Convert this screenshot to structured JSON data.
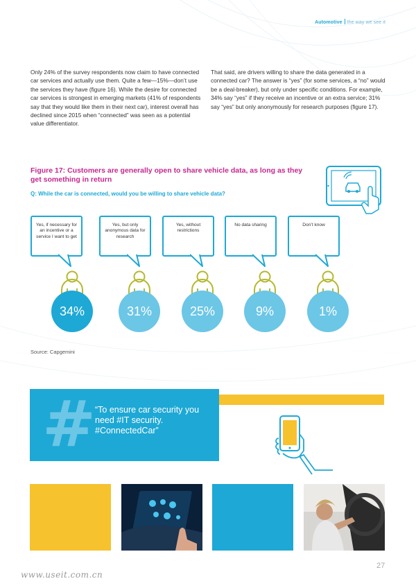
{
  "header": {
    "section": "Automotive",
    "subtitle": "the way we see it"
  },
  "body": {
    "left_paragraph": "Only 24% of the survey respondents now claim to have connected car services and actually use them. Quite a few—15%—don’t use the services they have (figure 16). While the desire for connected car services is strongest in emerging markets (41% of respondents say that they would like them in their next car), interest overall has declined since 2015 when “connected” was seen as a potential value differentiator.",
    "right_paragraph": "That said, are drivers willing to share the data generated in a connected car? The answer is “yes” (for some services, a “no” would be a deal-breaker), but only under specific conditions. For example, 34% say “yes” if they receive an incentive or an extra service; 31% say “yes” but only anonymously for research purposes (figure 17)."
  },
  "figure": {
    "title": "Figure 17: Customers are generally open to share vehicle data, as long as they get something in return",
    "question": "Q: While the car is connected, would you be willing to share vehicle data?",
    "source": "Source: Capgemini"
  },
  "chart_data": {
    "type": "table",
    "title": "Figure 17: Customers are generally open to share vehicle data, as long as they get something in return",
    "categories": [
      "Yes, if necessary for an incentive or a service I want to get",
      "Yes, but only anonymous data for research",
      "Yes, without restrictions",
      "No data sharing",
      "Don’t know"
    ],
    "values": [
      34,
      31,
      25,
      9,
      1
    ],
    "value_labels": [
      "34%",
      "31%",
      "25%",
      "9%",
      "1%"
    ],
    "colors": [
      "#1ea8d5",
      "#6cc6e6",
      "#6cc6e6",
      "#6cc6e6",
      "#6cc6e6"
    ]
  },
  "callout": {
    "symbol": "#",
    "quote": "“To ensure car security you need #IT security. #ConnectedCar”"
  },
  "footer": {
    "page_number": "27",
    "watermark": "www.useit.com.cn"
  },
  "colors": {
    "accent_blue": "#1ea8d5",
    "light_blue": "#6cc6e6",
    "magenta": "#c4278f",
    "yellow": "#f6c22e",
    "olive": "#b6b830"
  },
  "icons": [
    "tablet-car-icon",
    "person-icon",
    "phone-hand-icon",
    "hashtag-icon"
  ]
}
